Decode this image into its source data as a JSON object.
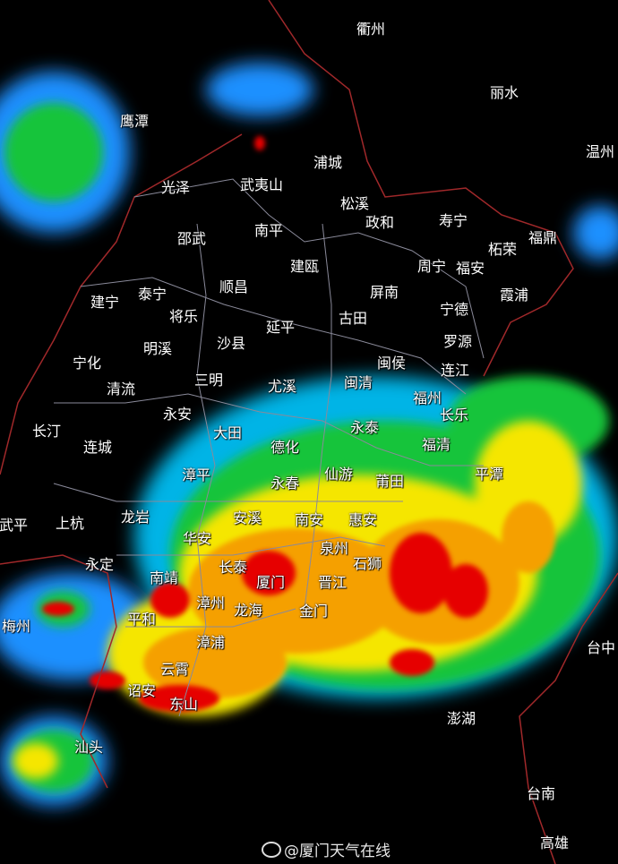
{
  "map": {
    "type": "weather-radar-composite",
    "colors": {
      "background": "#000000",
      "light": "#1e90ff",
      "cyan": "#00c8e6",
      "green": "#12c43a",
      "dark_green": "#0a8c1e",
      "yellow": "#f5e600",
      "orange": "#f5a000",
      "red": "#e60000",
      "border": "#8a8a9a",
      "province_border": "#a0282a"
    },
    "labels": [
      "衢州",
      "丽水",
      "鹰潭",
      "温州",
      "光泽",
      "武夷山",
      "浦城",
      "松溪",
      "政和",
      "寿宁",
      "柘荣",
      "福鼎",
      "邵武",
      "南平",
      "建瓯",
      "周宁",
      "福安",
      "霞浦",
      "建宁",
      "泰宁",
      "顺昌",
      "将乐",
      "屏南",
      "宁德",
      "古田",
      "明溪",
      "沙县",
      "延平",
      "罗源",
      "宁化",
      "闽侯",
      "连江",
      "清流",
      "三明",
      "尤溪",
      "闽清",
      "福州",
      "长乐",
      "永安",
      "长汀",
      "连城",
      "大田",
      "永泰",
      "德化",
      "福清",
      "平潭",
      "漳平",
      "仙游",
      "莆田",
      "永春",
      "武平",
      "上杭",
      "龙岩",
      "安溪",
      "南安",
      "惠安",
      "华安",
      "泉州",
      "石狮",
      "永定",
      "南靖",
      "长泰",
      "厦门",
      "晋江",
      "漳州",
      "龙海",
      "金门",
      "平和",
      "梅州",
      "漳浦",
      "台中",
      "云霄",
      "诏安",
      "东山",
      "澎湖",
      "汕头",
      "台南",
      "高雄"
    ]
  },
  "watermark": {
    "text": "@厦门天气在线",
    "icon": "weibo-icon"
  }
}
